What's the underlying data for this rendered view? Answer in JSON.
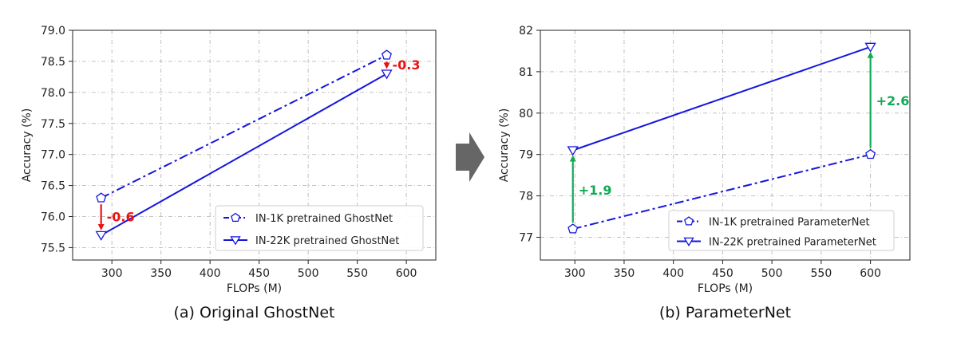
{
  "chart_data": [
    {
      "type": "line",
      "caption": "(a) Original GhostNet",
      "xlabel": "FLOPs (M)",
      "ylabel": "Accuracy (%)",
      "xlim": [
        260,
        630
      ],
      "ylim": [
        75.3,
        79.0
      ],
      "xticks": [
        300,
        350,
        400,
        450,
        500,
        550,
        600
      ],
      "yticks": [
        75.5,
        76.0,
        76.5,
        77.0,
        77.5,
        78.0,
        78.5,
        79.0
      ],
      "ytick_labels": [
        "75.5",
        "76.0",
        "76.5",
        "77.0",
        "77.5",
        "78.0",
        "78.5",
        "79.0"
      ],
      "grid": true,
      "legend_position": "bottom-right",
      "series": [
        {
          "name": "IN-1K pretrained GhostNet",
          "x": [
            289,
            580
          ],
          "y": [
            76.3,
            78.6
          ],
          "style": "dashdot",
          "marker": "pentagon",
          "color": "#1515dd"
        },
        {
          "name": "IN-22K pretrained GhostNet",
          "x": [
            289,
            580
          ],
          "y": [
            75.7,
            78.3
          ],
          "style": "solid",
          "marker": "triangle-down",
          "color": "#1515dd"
        }
      ],
      "annotations": [
        {
          "text": "-0.6",
          "x": 289,
          "y_from": 76.3,
          "y_to": 75.7,
          "color": "#ee1111"
        },
        {
          "text": "-0.3",
          "x": 580,
          "y_from": 78.6,
          "y_to": 78.3,
          "color": "#ee1111"
        }
      ]
    },
    {
      "type": "line",
      "caption": "(b) ParameterNet",
      "xlabel": "FLOPs (M)",
      "ylabel": "Accuracy (%)",
      "xlim": [
        265,
        640
      ],
      "ylim": [
        76.45,
        82.0
      ],
      "xticks": [
        300,
        350,
        400,
        450,
        500,
        550,
        600
      ],
      "yticks": [
        77,
        78,
        79,
        80,
        81,
        82
      ],
      "ytick_labels": [
        "77",
        "78",
        "79",
        "80",
        "81",
        "82"
      ],
      "grid": true,
      "legend_position": "bottom-right",
      "series": [
        {
          "name": "IN-1K pretrained ParameterNet",
          "x": [
            298,
            600
          ],
          "y": [
            77.2,
            79.0
          ],
          "style": "dashdot",
          "marker": "pentagon",
          "color": "#1515dd"
        },
        {
          "name": "IN-22K pretrained ParameterNet",
          "x": [
            298,
            600
          ],
          "y": [
            79.1,
            81.6
          ],
          "style": "solid",
          "marker": "triangle-down",
          "color": "#1515dd"
        }
      ],
      "annotations": [
        {
          "text": "+1.9",
          "x": 298,
          "y_from": 77.2,
          "y_to": 79.1,
          "color": "#11aa55"
        },
        {
          "text": "+2.6",
          "x": 600,
          "y_from": 79.0,
          "y_to": 81.6,
          "color": "#11aa55"
        }
      ]
    }
  ],
  "arrow_color": "#666666"
}
